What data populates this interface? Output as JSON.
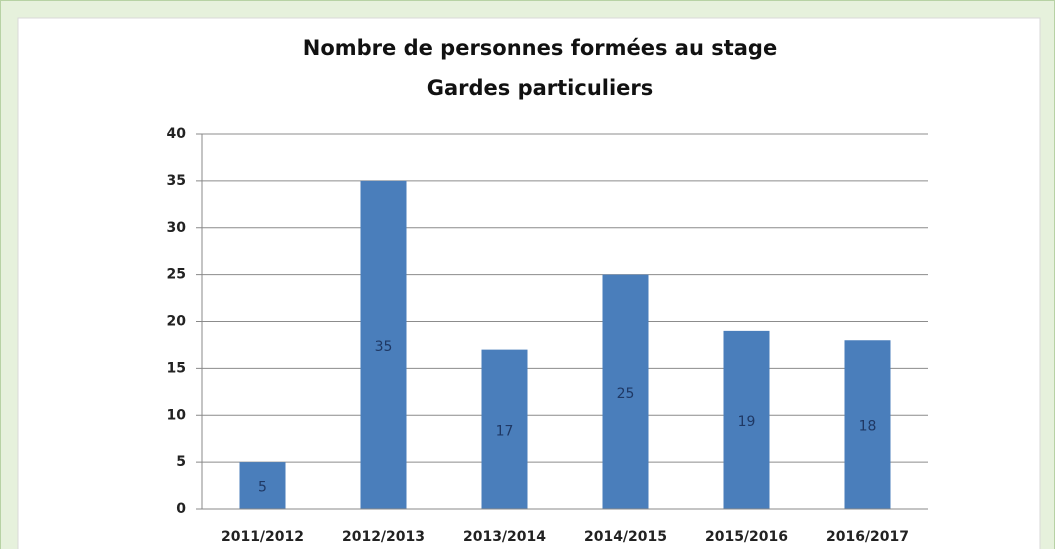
{
  "chart_data": {
    "type": "bar",
    "title": [
      "Nombre de personnes formées  au stage",
      "Gardes particuliers"
    ],
    "categories": [
      "2011/2012",
      "2012/2013",
      "2013/2014",
      "2014/2015",
      "2015/2016",
      "2016/2017"
    ],
    "values": [
      5,
      35,
      17,
      25,
      19,
      18
    ],
    "color": "#4a7ebb",
    "ylim": [
      0,
      40
    ],
    "yticks": [
      0,
      5,
      10,
      15,
      20,
      25,
      30,
      35,
      40
    ],
    "grid": true
  }
}
